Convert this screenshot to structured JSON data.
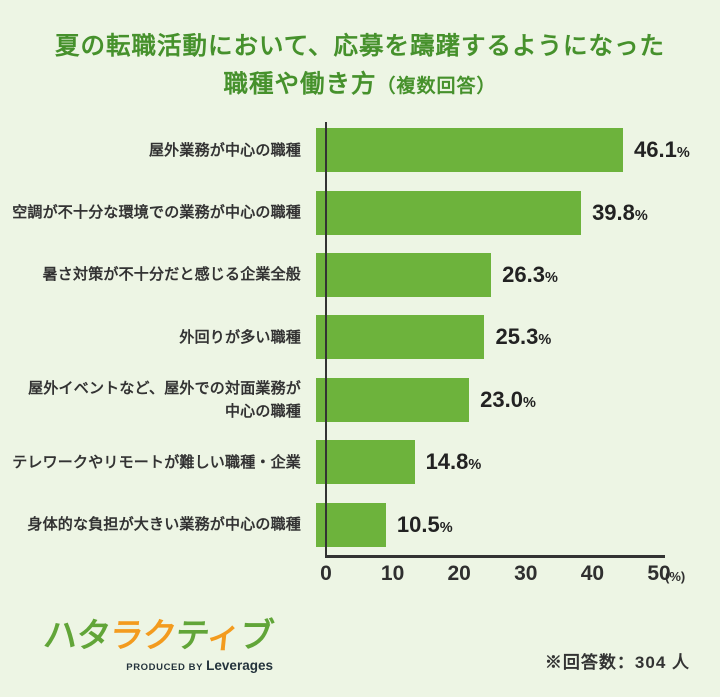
{
  "theme": {
    "background": "#edf5e4",
    "title_green": "#46912c",
    "bar_green": "#6db33c",
    "text_dark": "#333333",
    "logo_green": "#61a538",
    "logo_orange": "#f39b1e"
  },
  "title": {
    "line1": "夏の転職活動において、応募を躊躇するようになった",
    "line2_main": "職種や働き方",
    "line2_sub": "（複数回答）"
  },
  "chart_data": {
    "type": "bar",
    "orientation": "horizontal",
    "categories": [
      "屋外業務が中心の職種",
      "空調が不十分な環境での業務が中心の職種",
      "暑さ対策が不十分だと感じる企業全般",
      "外回りが多い職種",
      "屋外イベントなど、屋外での対面業務が\n中心の職種",
      "テレワークやリモートが難しい職種・企業",
      "身体的な負担が大きい業務が中心の職種"
    ],
    "values": [
      46.1,
      39.8,
      26.3,
      25.3,
      23.0,
      14.8,
      10.5
    ],
    "value_labels": [
      "46.1",
      "39.8",
      "26.3",
      "25.3",
      "23.0",
      "14.8",
      "10.5"
    ],
    "unit": "%",
    "xlim": [
      0,
      50
    ],
    "x_ticks": [
      0,
      10,
      20,
      30,
      40,
      50
    ],
    "x_unit_label": "(%)",
    "xlabel": "",
    "ylabel": "",
    "grid": false,
    "legend": false,
    "bar_color": "#6db33c"
  },
  "footer": {
    "logo": {
      "text": "ハタラクティブ",
      "char_colors": [
        "green",
        "green",
        "orange",
        "orange",
        "green",
        "orange",
        "green"
      ],
      "produced_by": "PRODUCED BY",
      "brand": "Leverages"
    },
    "note": "※回答数：304 人"
  }
}
